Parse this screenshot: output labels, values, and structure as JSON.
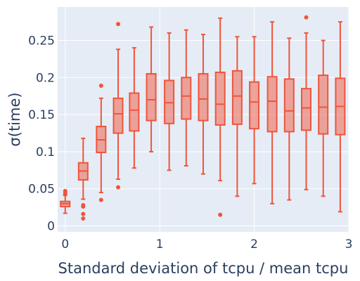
{
  "chart_data": {
    "type": "box",
    "title": "",
    "xlabel": "Standard deviation of tcpu / mean tcpu",
    "ylabel": "σ(time)",
    "xlim": [
      -0.08,
      3.0
    ],
    "ylim": [
      -0.008,
      0.295
    ],
    "x_ticks": [
      0,
      1,
      2,
      3
    ],
    "y_ticks": [
      0,
      0.05,
      0.1,
      0.15,
      0.2,
      0.25
    ],
    "x_tick_labels": [
      "0",
      "1",
      "2",
      "3"
    ],
    "y_tick_labels": [
      "0",
      "0.05",
      "0.1",
      "0.15",
      "0.2",
      "0.25"
    ],
    "grid": true,
    "background": "#e5ecf6",
    "series_color": "#ef553b",
    "box_fill": "#ef553b",
    "boxes": [
      {
        "x": 0.0,
        "min": 0.017,
        "q1": 0.026,
        "median": 0.03,
        "q3": 0.033,
        "max": 0.041,
        "outliers": [
          0.043,
          0.045,
          0.047
        ]
      },
      {
        "x": 0.19,
        "min": 0.036,
        "q1": 0.062,
        "median": 0.074,
        "q3": 0.085,
        "max": 0.118,
        "outliers": [
          0.028,
          0.026,
          0.016,
          0.01
        ]
      },
      {
        "x": 0.38,
        "min": 0.045,
        "q1": 0.099,
        "median": 0.116,
        "q3": 0.134,
        "max": 0.172,
        "outliers": [
          0.189,
          0.035
        ]
      },
      {
        "x": 0.56,
        "min": 0.063,
        "q1": 0.125,
        "median": 0.151,
        "q3": 0.172,
        "max": 0.238,
        "outliers": [
          0.272,
          0.052
        ]
      },
      {
        "x": 0.73,
        "min": 0.078,
        "q1": 0.128,
        "median": 0.156,
        "q3": 0.179,
        "max": 0.24,
        "outliers": []
      },
      {
        "x": 0.91,
        "min": 0.1,
        "q1": 0.142,
        "median": 0.17,
        "q3": 0.205,
        "max": 0.268,
        "outliers": []
      },
      {
        "x": 1.1,
        "min": 0.075,
        "q1": 0.138,
        "median": 0.166,
        "q3": 0.196,
        "max": 0.26,
        "outliers": []
      },
      {
        "x": 1.28,
        "min": 0.081,
        "q1": 0.144,
        "median": 0.175,
        "q3": 0.2,
        "max": 0.264,
        "outliers": []
      },
      {
        "x": 1.46,
        "min": 0.07,
        "q1": 0.142,
        "median": 0.171,
        "q3": 0.205,
        "max": 0.258,
        "outliers": []
      },
      {
        "x": 1.64,
        "min": 0.061,
        "q1": 0.136,
        "median": 0.164,
        "q3": 0.207,
        "max": 0.28,
        "outliers": [
          0.015
        ]
      },
      {
        "x": 1.82,
        "min": 0.04,
        "q1": 0.137,
        "median": 0.175,
        "q3": 0.209,
        "max": 0.255,
        "outliers": []
      },
      {
        "x": 2.0,
        "min": 0.057,
        "q1": 0.131,
        "median": 0.167,
        "q3": 0.194,
        "max": 0.255,
        "outliers": []
      },
      {
        "x": 2.19,
        "min": 0.03,
        "q1": 0.127,
        "median": 0.168,
        "q3": 0.201,
        "max": 0.275,
        "outliers": []
      },
      {
        "x": 2.37,
        "min": 0.035,
        "q1": 0.127,
        "median": 0.155,
        "q3": 0.198,
        "max": 0.253,
        "outliers": []
      },
      {
        "x": 2.55,
        "min": 0.049,
        "q1": 0.129,
        "median": 0.159,
        "q3": 0.185,
        "max": 0.26,
        "outliers": [
          0.281
        ]
      },
      {
        "x": 2.73,
        "min": 0.04,
        "q1": 0.124,
        "median": 0.16,
        "q3": 0.203,
        "max": 0.25,
        "outliers": []
      },
      {
        "x": 2.91,
        "min": 0.019,
        "q1": 0.123,
        "median": 0.161,
        "q3": 0.199,
        "max": 0.275,
        "outliers": []
      }
    ]
  }
}
